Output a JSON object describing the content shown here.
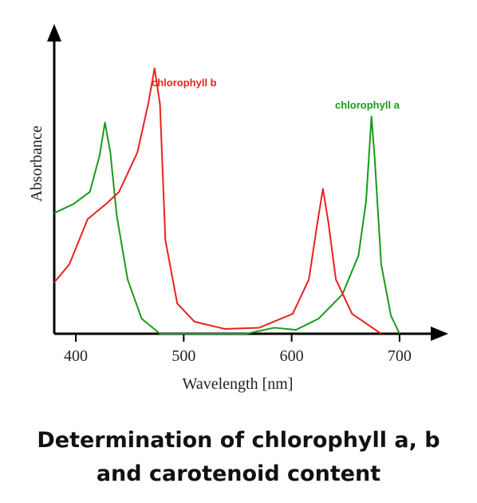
{
  "chart_data": {
    "type": "line",
    "y_label": "Absorbance",
    "x_label": "Wavelength [nm]",
    "xlim": [
      380,
      740
    ],
    "xticks": [
      400,
      500,
      600,
      700
    ],
    "ylim": [
      0,
      1
    ],
    "series": [
      {
        "name": "chlorophyll a",
        "color": "#1a9a1a",
        "x": [
          380,
          398,
          413,
          422,
          427,
          432,
          438,
          448,
          461,
          478,
          558,
          584,
          604,
          625,
          647,
          662,
          669,
          674,
          677,
          683,
          692,
          700
        ],
        "values": [
          0.4,
          0.43,
          0.47,
          0.59,
          0.7,
          0.6,
          0.39,
          0.18,
          0.05,
          0,
          0,
          0.02,
          0.013,
          0.05,
          0.13,
          0.26,
          0.44,
          0.72,
          0.58,
          0.23,
          0.06,
          0
        ]
      },
      {
        "name": "chlorophyll b",
        "color": "#e8231f",
        "x": [
          380,
          394,
          411,
          428,
          440,
          457,
          467,
          473,
          478,
          483,
          494,
          510,
          538,
          570,
          601,
          616,
          624,
          629,
          634,
          641,
          656,
          683
        ],
        "values": [
          0.17,
          0.23,
          0.38,
          0.43,
          0.47,
          0.6,
          0.76,
          0.88,
          0.76,
          0.31,
          0.1,
          0.04,
          0.016,
          0.02,
          0.066,
          0.18,
          0.37,
          0.48,
          0.37,
          0.18,
          0.066,
          0
        ]
      }
    ],
    "caption": [
      "Determination of chlorophyll a, b",
      "and carotenoid content"
    ]
  }
}
